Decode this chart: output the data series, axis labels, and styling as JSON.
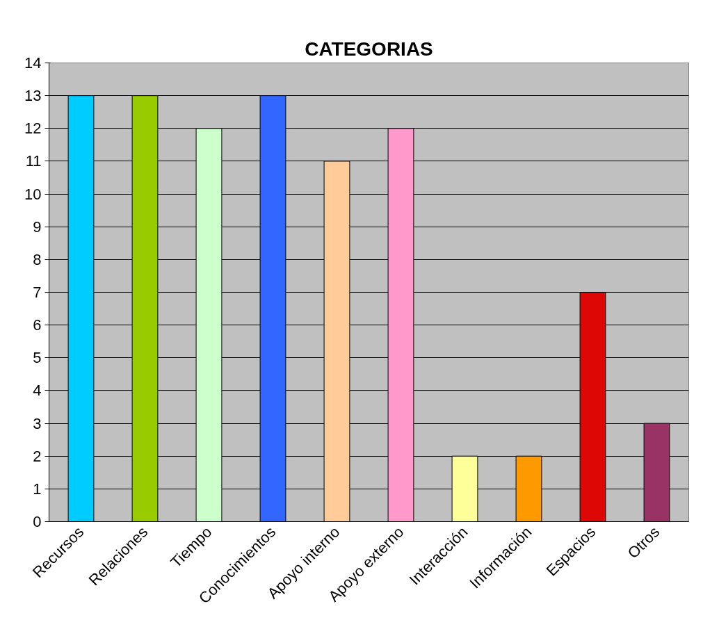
{
  "chart_data": {
    "type": "bar",
    "title": "CATEGORIAS",
    "categories": [
      "Recursos",
      "Relaciones",
      "Tiempo",
      "Conocimientos",
      "Apoyo interno",
      "Apoyo externo",
      "Interacción",
      "Información",
      "Espacios",
      "Otros"
    ],
    "values": [
      13,
      13,
      12,
      13,
      11,
      12,
      2,
      2,
      7,
      3
    ],
    "colors": [
      "#00ccff",
      "#99cc00",
      "#ccffcc",
      "#3366ff",
      "#ffcc99",
      "#ff99cc",
      "#ffff99",
      "#ff9900",
      "#dd0806",
      "#993366"
    ],
    "ylim": [
      0,
      14
    ],
    "yticks": [
      0,
      1,
      2,
      3,
      4,
      5,
      6,
      7,
      8,
      9,
      10,
      11,
      12,
      13,
      14
    ],
    "grid": "y"
  }
}
